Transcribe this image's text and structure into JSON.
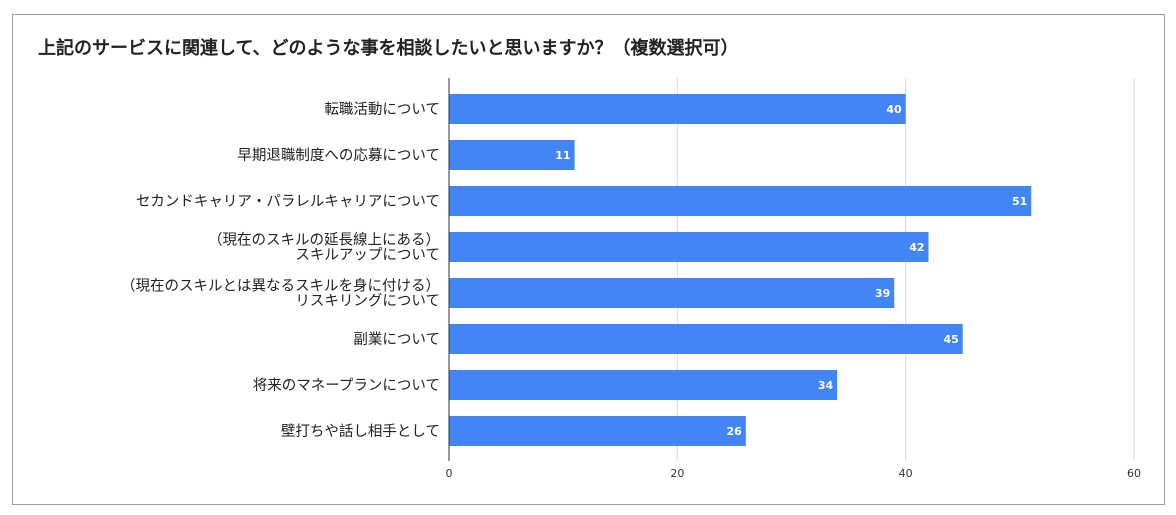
{
  "chart_data": {
    "type": "bar",
    "orientation": "horizontal",
    "title": "上記のサービスに関連して、どのような事を相談したいと思いますか？（複数選択可）",
    "categories": [
      [
        "転職活動について"
      ],
      [
        "早期退職制度への応募について"
      ],
      [
        "セカンドキャリア・パラレルキャリアについて"
      ],
      [
        "（現在のスキルの延長線上にある）",
        "スキルアップについて"
      ],
      [
        "（現在のスキルとは異なるスキルを身に付ける）",
        "リスキリングについて"
      ],
      [
        "副業について"
      ],
      [
        "将来のマネープランについて"
      ],
      [
        "壁打ちや話し相手として"
      ]
    ],
    "values": [
      40,
      11,
      51,
      42,
      39,
      45,
      34,
      26
    ],
    "xlim": [
      0,
      60
    ],
    "xticks": [
      "0",
      "20",
      "40",
      "60"
    ],
    "grid": true,
    "bar_color": "#4285f4"
  }
}
